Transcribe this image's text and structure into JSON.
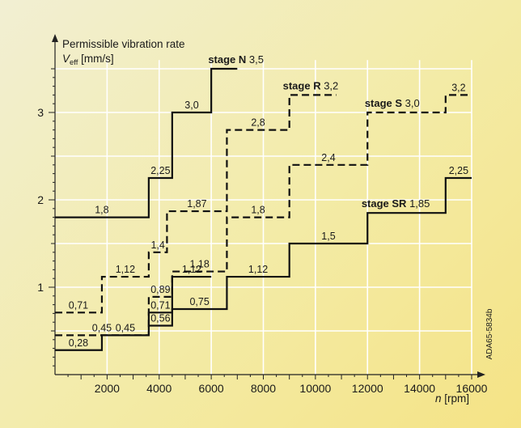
{
  "chart_data": {
    "type": "line",
    "title": "",
    "ylabel": "Permissible vibration rate",
    "ylabel_symbol": "V",
    "ylabel_subscript": "eff",
    "ylabel_unit": "[mm/s]",
    "xlabel_symbol": "n",
    "xlabel_unit": "[rpm]",
    "xlim": [
      0,
      16000
    ],
    "ylim": [
      0,
      3.7
    ],
    "x_ticks": [
      2000,
      4000,
      6000,
      8000,
      10000,
      12000,
      14000,
      16000
    ],
    "x_tick_labels": [
      "2000",
      "4000",
      "6000",
      "8000",
      "10000",
      "12000",
      "14000",
      "16000"
    ],
    "y_ticks": [
      1,
      2,
      3
    ],
    "y_tick_labels": [
      "1",
      "2",
      "3"
    ],
    "grid": true,
    "watermark": "ADA65-5834b",
    "series": [
      {
        "name": "stage N",
        "end_value": "3,5",
        "style": "solid",
        "steps": [
          {
            "x0": 0,
            "x1": 1800,
            "y": 0.28,
            "label": "0,28"
          },
          {
            "x0": 1800,
            "x1": 3600,
            "y": 0.45,
            "label": "0,45"
          },
          {
            "x0": 3600,
            "x1": 4500,
            "y": 0.71,
            "label": "0,71"
          },
          {
            "x0": 4500,
            "x1": 6000,
            "y": 1.12,
            "label": "1,12"
          },
          {
            "x0": 0,
            "x1": 3600,
            "y": 1.8,
            "label": "1,8"
          },
          {
            "x0": 3600,
            "x1": 4500,
            "y": 2.25,
            "label": "2,25"
          },
          {
            "x0": 4500,
            "x1": 6000,
            "y": 3.0,
            "label": "3,0"
          },
          {
            "x0": 6000,
            "x1": 7000,
            "y": 3.5,
            "label": ""
          }
        ]
      },
      {
        "name": "stage R",
        "end_value": "3,2",
        "style": "dashed",
        "steps": [
          {
            "x0": 0,
            "x1": 1800,
            "y": 0.71,
            "label": "0,71"
          },
          {
            "x0": 1800,
            "x1": 3600,
            "y": 1.12,
            "label": "1,12"
          },
          {
            "x0": 3600,
            "x1": 4300,
            "y": 1.4,
            "label": "1,4"
          },
          {
            "x0": 4300,
            "x1": 6600,
            "y": 1.87,
            "label": "1,87"
          },
          {
            "x0": 6600,
            "x1": 9000,
            "y": 2.8,
            "label": "2,8"
          },
          {
            "x0": 9000,
            "x1": 10800,
            "y": 3.2,
            "label": ""
          }
        ]
      },
      {
        "name": "stage S",
        "end_value": "3,0",
        "style": "dashed",
        "steps": [
          {
            "x0": 0,
            "x1": 3600,
            "y": 0.45,
            "label": "0,45"
          },
          {
            "x0": 3600,
            "x1": 4500,
            "y": 0.89,
            "label": "0,89"
          },
          {
            "x0": 4500,
            "x1": 6600,
            "y": 1.18,
            "label": "1,18"
          },
          {
            "x0": 6600,
            "x1": 9000,
            "y": 1.8,
            "label": "1,8"
          },
          {
            "x0": 9000,
            "x1": 12000,
            "y": 2.4,
            "label": "2,4"
          },
          {
            "x0": 12000,
            "x1": 15000,
            "y": 3.0,
            "label": ""
          },
          {
            "x0": 15000,
            "x1": 16000,
            "y": 3.2,
            "label": "3,2"
          }
        ]
      },
      {
        "name": "stage SR",
        "end_value": "1,85",
        "style": "solid",
        "steps": [
          {
            "x0": 3600,
            "x1": 4500,
            "y": 0.56,
            "label": "0,56"
          },
          {
            "x0": 4500,
            "x1": 6600,
            "y": 0.75,
            "label": "0,75"
          },
          {
            "x0": 6600,
            "x1": 9000,
            "y": 1.12,
            "label": "1,12"
          },
          {
            "x0": 9000,
            "x1": 12000,
            "y": 1.5,
            "label": "1,5"
          },
          {
            "x0": 12000,
            "x1": 15000,
            "y": 1.85,
            "label": ""
          },
          {
            "x0": 15000,
            "x1": 16000,
            "y": 2.25,
            "label": "2,25"
          }
        ]
      }
    ]
  }
}
